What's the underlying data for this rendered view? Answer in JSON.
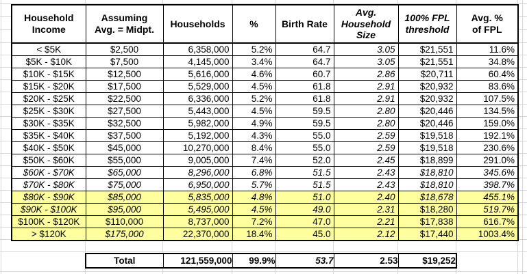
{
  "colors": {
    "highlight": "#ffff9e",
    "gridline": "#d6d6d6",
    "table_border": "#000000",
    "background": "#ffffff",
    "text": "#000000"
  },
  "chart_data": {
    "type": "table",
    "title": "Households by income bracket with birth rate, household size and FPL comparison",
    "columns": [
      "Household Income",
      "Assuming Avg. = Midpt.",
      "Households",
      "%",
      "Birth Rate",
      "Avg. Household Size",
      "100% FPL threshold",
      "Avg. % of FPL"
    ],
    "rows": [
      [
        "< $5K",
        "$2,500",
        "6,358,000",
        "5.2%",
        "64.7",
        "3.05",
        "$21,551",
        "11.6%"
      ],
      [
        "$5K - $10K",
        "$7,500",
        "4,145,000",
        "3.4%",
        "64.7",
        "3.05",
        "$21,551",
        "34.8%"
      ],
      [
        "$10K - $15K",
        "$12,500",
        "5,616,000",
        "4.6%",
        "60.7",
        "2.86",
        "$20,711",
        "60.4%"
      ],
      [
        "$15K - $20K",
        "$17,500",
        "5,529,000",
        "4.5%",
        "61.8",
        "2.91",
        "$20,932",
        "83.6%"
      ],
      [
        "$20K - $25K",
        "$22,500",
        "6,336,000",
        "5.2%",
        "61.8",
        "2.91",
        "$20,932",
        "107.5%"
      ],
      [
        "$25K - $30K",
        "$27,500",
        "5,443,000",
        "4.5%",
        "59.5",
        "2.80",
        "$20,446",
        "134.5%"
      ],
      [
        "$30K - $35K",
        "$32,500",
        "5,982,000",
        "4.9%",
        "59.5",
        "2.80",
        "$20,446",
        "159.0%"
      ],
      [
        "$35K - $40K",
        "$37,500",
        "5,192,000",
        "4.3%",
        "55.0",
        "2.59",
        "$19,518",
        "192.1%"
      ],
      [
        "$40K - $50K",
        "$45,000",
        "10,270,000",
        "8.4%",
        "55.0",
        "2.59",
        "$19,518",
        "230.6%"
      ],
      [
        "$50K - $60K",
        "$55,000",
        "9,005,000",
        "7.4%",
        "52.0",
        "2.45",
        "$18,899",
        "291.0%"
      ],
      [
        "$60K - $70K",
        "$65,000",
        "8,296,000",
        "6.8%",
        "51.5",
        "2.43",
        "$18,810",
        "345.6%"
      ],
      [
        "$70K - $80K",
        "$75,000",
        "6,950,000",
        "5.7%",
        "51.5",
        "2.43",
        "$18,810",
        "398.7%"
      ],
      [
        "$80K - $90K",
        "$85,000",
        "5,835,000",
        "4.8%",
        "51.0",
        "2.40",
        "$18,678",
        "455.1%"
      ],
      [
        "$90K - $100K",
        "$95,000",
        "5,495,000",
        "4.5%",
        "49.0",
        "2.31",
        "$18,280",
        "519.7%"
      ],
      [
        "$100K - $120K",
        "$110,000",
        "8,737,000",
        "7.2%",
        "47.0",
        "2.21",
        "$17,838",
        "616.7%"
      ],
      [
        "> $120K",
        "$175,000",
        "22,370,000",
        "18.4%",
        "45.0",
        "2.12",
        "$17,440",
        "1003.4%"
      ]
    ],
    "total_row": [
      "",
      "Total",
      "121,559,000",
      "99.9%",
      "53.7",
      "2.53",
      "$19,252",
      ""
    ]
  },
  "table": {
    "header": {
      "labels": [
        "Household\nIncome",
        "Assuming\nAvg. = Midpt.",
        "Households",
        "%",
        "Birth Rate",
        "Avg.\nHousehold\nSize",
        "100% FPL\nthreshold",
        "Avg. %\nof FPL"
      ],
      "italics": [
        false,
        false,
        false,
        false,
        false,
        true,
        true,
        false
      ]
    },
    "rows": [
      {
        "cells": [
          "< $5K",
          "$2,500",
          "6,358,000",
          "5.2%",
          "64.7",
          "3.05",
          "$21,551",
          "11.6%"
        ],
        "italics": [
          false,
          false,
          false,
          false,
          false,
          true,
          false,
          false
        ],
        "highlight": false
      },
      {
        "cells": [
          "$5K - $10K",
          "$7,500",
          "4,145,000",
          "3.4%",
          "64.7",
          "3.05",
          "$21,551",
          "34.8%"
        ],
        "italics": [
          false,
          false,
          false,
          false,
          false,
          true,
          false,
          false
        ],
        "highlight": false
      },
      {
        "cells": [
          "$10K - $15K",
          "$12,500",
          "5,616,000",
          "4.6%",
          "60.7",
          "2.86",
          "$20,711",
          "60.4%"
        ],
        "italics": [
          false,
          false,
          false,
          false,
          false,
          true,
          false,
          false
        ],
        "highlight": false
      },
      {
        "cells": [
          "$15K - $20K",
          "$17,500",
          "5,529,000",
          "4.5%",
          "61.8",
          "2.91",
          "$20,932",
          "83.6%"
        ],
        "italics": [
          false,
          false,
          false,
          false,
          false,
          true,
          false,
          false
        ],
        "highlight": false
      },
      {
        "cells": [
          "$20K - $25K",
          "$22,500",
          "6,336,000",
          "5.2%",
          "61.8",
          "2.91",
          "$20,932",
          "107.5%"
        ],
        "italics": [
          false,
          false,
          false,
          false,
          false,
          true,
          false,
          false
        ],
        "highlight": false
      },
      {
        "cells": [
          "$25K - $30K",
          "$27,500",
          "5,443,000",
          "4.5%",
          "59.5",
          "2.80",
          "$20,446",
          "134.5%"
        ],
        "italics": [
          false,
          false,
          false,
          false,
          false,
          true,
          false,
          false
        ],
        "highlight": false
      },
      {
        "cells": [
          "$30K - $35K",
          "$32,500",
          "5,982,000",
          "4.9%",
          "59.5",
          "2.80",
          "$20,446",
          "159.0%"
        ],
        "italics": [
          false,
          false,
          false,
          false,
          false,
          true,
          false,
          false
        ],
        "highlight": false
      },
      {
        "cells": [
          "$35K - $40K",
          "$37,500",
          "5,192,000",
          "4.3%",
          "55.0",
          "2.59",
          "$19,518",
          "192.1%"
        ],
        "italics": [
          false,
          false,
          false,
          false,
          false,
          true,
          false,
          false
        ],
        "highlight": false
      },
      {
        "cells": [
          "$40K - $50K",
          "$45,000",
          "10,270,000",
          "8.4%",
          "55.0",
          "2.59",
          "$19,518",
          "230.6%"
        ],
        "italics": [
          false,
          false,
          false,
          false,
          false,
          true,
          false,
          false
        ],
        "highlight": false
      },
      {
        "cells": [
          "$50K - $60K",
          "$55,000",
          "9,005,000",
          "7.4%",
          "52.0",
          "2.45",
          "$18,899",
          "291.0%"
        ],
        "italics": [
          false,
          false,
          false,
          false,
          false,
          true,
          false,
          false
        ],
        "highlight": false
      },
      {
        "cells": [
          "$60K - $70K",
          "$65,000",
          "8,296,000",
          "6.8%",
          "51.5",
          "2.43",
          "$18,810",
          "345.6%"
        ],
        "italics": [
          true,
          true,
          true,
          true,
          true,
          true,
          true,
          true
        ],
        "highlight": false
      },
      {
        "cells": [
          "$70K - $80K",
          "$75,000",
          "6,950,000",
          "5.7%",
          "51.5",
          "2.43",
          "$18,810",
          "398.7%"
        ],
        "italics": [
          true,
          true,
          true,
          true,
          true,
          true,
          true,
          true
        ],
        "highlight": false
      },
      {
        "cells": [
          "$80K - $90K",
          "$85,000",
          "5,835,000",
          "4.8%",
          "51.0",
          "2.40",
          "$18,678",
          "455.1%"
        ],
        "italics": [
          true,
          true,
          true,
          true,
          true,
          true,
          true,
          true
        ],
        "highlight": true
      },
      {
        "cells": [
          "$90K - $100K",
          "$95,000",
          "5,495,000",
          "4.5%",
          "49.0",
          "2.31",
          "$18,280",
          "519.7%"
        ],
        "italics": [
          true,
          true,
          true,
          true,
          true,
          true,
          false,
          true
        ],
        "highlight": true
      },
      {
        "cells": [
          "$100K - $120K",
          "$110,000",
          "8,737,000",
          "7.2%",
          "47.0",
          "2.21",
          "$17,838",
          "616.7%"
        ],
        "italics": [
          false,
          false,
          false,
          false,
          false,
          true,
          false,
          false
        ],
        "highlight": true
      },
      {
        "cells": [
          "> $120K",
          "$175,000",
          "22,370,000",
          "18.4%",
          "45.0",
          "2.12",
          "$17,440",
          "1003.4%"
        ],
        "italics": [
          false,
          true,
          false,
          false,
          false,
          true,
          false,
          false
        ],
        "highlight": true
      }
    ],
    "total": {
      "label": "Total",
      "cells": [
        "121,559,000",
        "99.9%",
        "53.7",
        "2.53",
        "$19,252"
      ],
      "italics": [
        false,
        false,
        true,
        false,
        false
      ]
    }
  }
}
